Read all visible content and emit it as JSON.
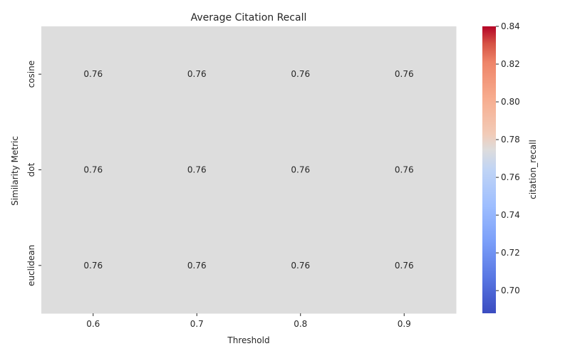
{
  "chart_data": {
    "type": "heatmap",
    "title": "Average Citation Recall",
    "xlabel": "Threshold",
    "ylabel": "Similarity Metric",
    "x_categories": [
      "0.6",
      "0.7",
      "0.8",
      "0.9"
    ],
    "y_categories": [
      "cosine",
      "dot",
      "euclidean"
    ],
    "values": [
      [
        0.76,
        0.76,
        0.76,
        0.76
      ],
      [
        0.76,
        0.76,
        0.76,
        0.76
      ],
      [
        0.76,
        0.76,
        0.76,
        0.76
      ]
    ],
    "cell_labels": [
      [
        "0.76",
        "0.76",
        "0.76",
        "0.76"
      ],
      [
        "0.76",
        "0.76",
        "0.76",
        "0.76"
      ],
      [
        "0.76",
        "0.76",
        "0.76",
        "0.76"
      ]
    ],
    "colormap": "coolwarm",
    "colorbar": {
      "label": "citation_recall",
      "range": [
        0.688,
        0.84
      ],
      "ticks": [
        "0.70",
        "0.72",
        "0.74",
        "0.76",
        "0.78",
        "0.80",
        "0.82",
        "0.84"
      ]
    },
    "colors": {
      "cool_end": "#3b4cc0",
      "neutral": "#dddddd",
      "warm_end": "#b40426"
    }
  }
}
